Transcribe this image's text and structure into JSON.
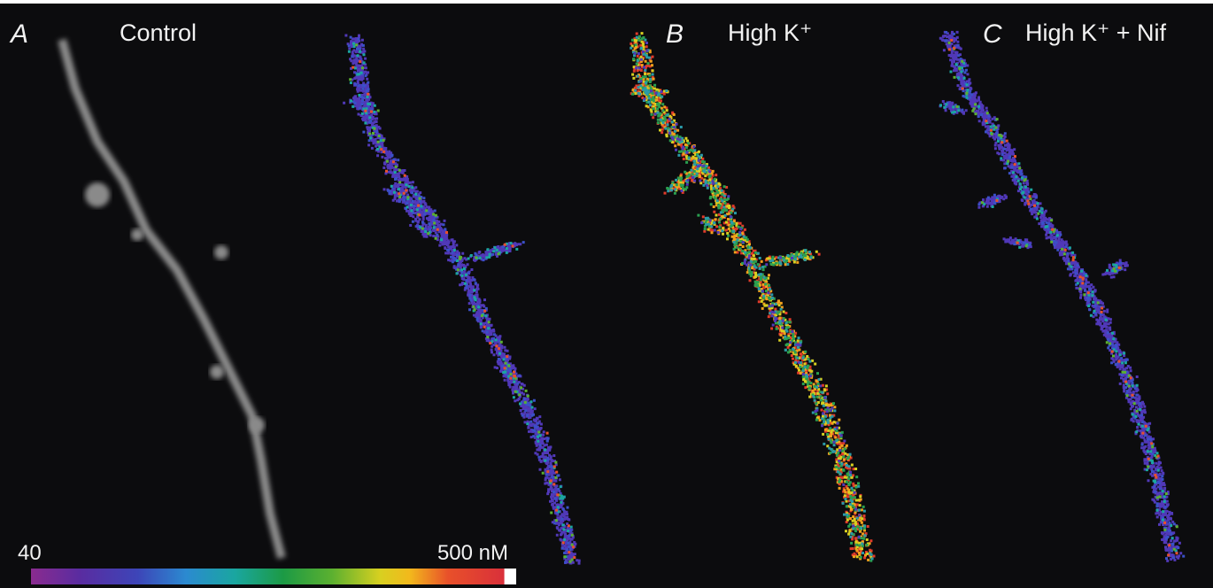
{
  "panels": [
    {
      "letter": "A",
      "label": "Control"
    },
    {
      "letter": "B",
      "label": "High K⁺"
    },
    {
      "letter": "C",
      "label": "High K⁺ + Nif"
    }
  ],
  "color_scale": {
    "min_label": "40",
    "max_label": "500 nM"
  }
}
